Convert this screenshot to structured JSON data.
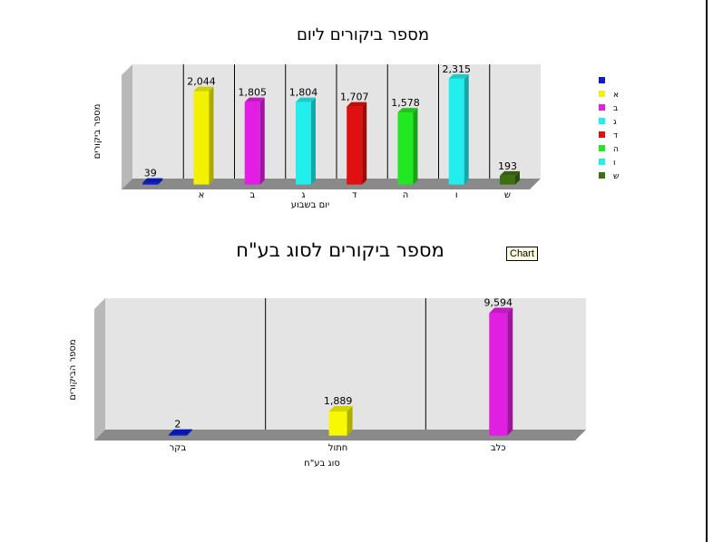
{
  "tooltip": "Chart",
  "chart_data": [
    {
      "type": "bar",
      "title": "מספר ביקורים ליום",
      "xlabel": "יום בשבוע",
      "ylabel": "מספר ביקורים",
      "categories": [
        "",
        "א",
        "ב",
        "ג",
        "ד",
        "ה",
        "ו",
        "ש"
      ],
      "values": [
        39,
        2044,
        1805,
        1804,
        1707,
        1578,
        2315,
        193
      ],
      "value_labels": [
        "39",
        "2,044",
        "1,805",
        "1,804",
        "1,707",
        "1,578",
        "2,315",
        "193"
      ],
      "colors": [
        "#0a1bd1",
        "#f2f200",
        "#e21ee2",
        "#22eeee",
        "#e01010",
        "#22e822",
        "#22eeee",
        "#3e6e12"
      ],
      "legend": [
        "",
        "א",
        "ב",
        "ג",
        "ד",
        "ה",
        "ו",
        "ש"
      ],
      "legend_position": "right",
      "grid": true,
      "ylim": [
        0,
        2500
      ]
    },
    {
      "type": "bar",
      "title": "מספר ביקורים לסוג בע\"ח",
      "xlabel": "סוג בע\"ח",
      "ylabel": "מספר הביקורים",
      "categories": [
        "בקר",
        "חתול",
        "כלב"
      ],
      "values": [
        2,
        1889,
        9594
      ],
      "value_labels": [
        "2",
        "1,889",
        "9,594"
      ],
      "colors": [
        "#0a1bd1",
        "#f8f800",
        "#e21ee2"
      ],
      "grid": true,
      "ylim": [
        0,
        10300
      ]
    }
  ]
}
